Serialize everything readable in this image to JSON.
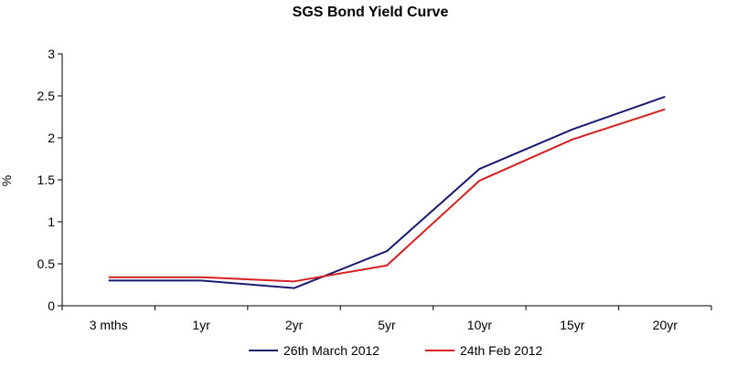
{
  "chart_data": {
    "type": "line",
    "title": "SGS Bond Yield Curve",
    "xlabel": "",
    "ylabel": "%",
    "categories": [
      "3 mths",
      "1yr",
      "2yr",
      "5yr",
      "10yr",
      "15yr",
      "20yr"
    ],
    "ylim": [
      0,
      3
    ],
    "yticks": [
      0,
      0.5,
      1,
      1.5,
      2,
      2.5,
      3
    ],
    "ytick_labels": [
      "0",
      "0.5",
      "1",
      "1.5",
      "2",
      "2.5",
      "3"
    ],
    "grid": false,
    "legend_position": "bottom",
    "series": [
      {
        "name": "26th March 2012",
        "color": "#1a1a6e",
        "values": [
          0.3,
          0.3,
          0.21,
          0.65,
          1.63,
          2.1,
          2.49
        ]
      },
      {
        "name": "24th Feb 2012",
        "color": "#d62020",
        "values": [
          0.34,
          0.34,
          0.29,
          0.48,
          1.49,
          1.98,
          2.34
        ]
      }
    ]
  }
}
